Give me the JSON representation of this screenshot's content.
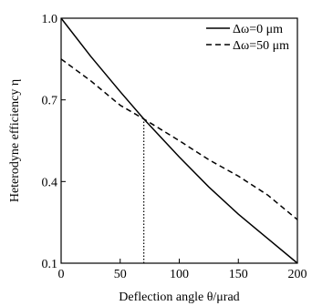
{
  "chart_data": {
    "type": "line",
    "title": "",
    "xlabel": "Deflection angle θ/μrad",
    "ylabel": "Heterodyne efficiency η",
    "xlim": [
      0,
      200
    ],
    "ylim": [
      0.1,
      1.0
    ],
    "x_ticks": [
      0,
      50,
      100,
      150,
      200
    ],
    "x_tick_labels": [
      "0",
      "50",
      "100",
      "150",
      "200"
    ],
    "y_ticks": [
      0.1,
      0.4,
      0.7,
      1.0
    ],
    "y_tick_labels": [
      "0.1",
      "0.4",
      "0.7",
      "1.0"
    ],
    "grid": false,
    "legend_position": "top-right",
    "series": [
      {
        "name": "Δω=0 μm",
        "style": "solid",
        "color": "#000000",
        "x": [
          0,
          25,
          50,
          70,
          100,
          125,
          150,
          175,
          200
        ],
        "y": [
          1.0,
          0.86,
          0.73,
          0.63,
          0.49,
          0.38,
          0.28,
          0.19,
          0.1
        ]
      },
      {
        "name": "Δω=50 μm",
        "style": "dashed",
        "color": "#000000",
        "x": [
          0,
          25,
          50,
          70,
          100,
          125,
          150,
          175,
          200
        ],
        "y": [
          0.85,
          0.77,
          0.68,
          0.63,
          0.55,
          0.48,
          0.42,
          0.35,
          0.26
        ]
      }
    ],
    "annotations": [
      {
        "type": "vertical-dotted-line",
        "x": 70,
        "y_from": 0.1,
        "y_to": 0.63
      }
    ]
  }
}
